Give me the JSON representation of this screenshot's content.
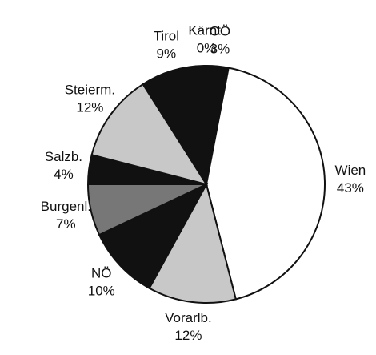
{
  "chart_data": {
    "type": "pie",
    "categories": [
      "Kärnt.",
      "OÖ",
      "Wien",
      "Vorarlb.",
      "NÖ",
      "Burgenl.",
      "Salzb.",
      "Steierm.",
      "Tirol"
    ],
    "values": [
      0,
      3,
      43,
      12,
      10,
      7,
      4,
      12,
      9
    ],
    "value_labels": [
      "0%",
      "3%",
      "43%",
      "12%",
      "10%",
      "7%",
      "4%",
      "12%",
      "9%"
    ],
    "colors": [
      "#111111",
      "#111111",
      "#ffffff",
      "#c8c8c8",
      "#111111",
      "#777777",
      "#111111",
      "#c8c8c8",
      "#111111"
    ]
  }
}
